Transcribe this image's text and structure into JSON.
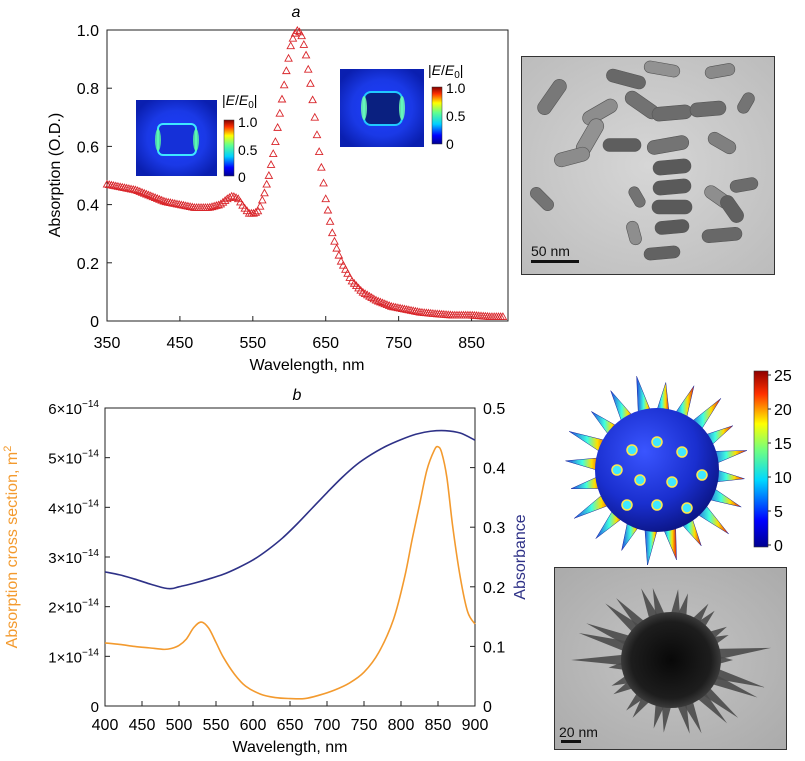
{
  "chart_data": [
    {
      "panel_label": "a",
      "type": "scatter",
      "marker": "open-triangle",
      "color": "#d9262b",
      "xlabel": "Wavelength, nm",
      "ylabel": "Absorption (O.D.)",
      "xlim": [
        350,
        900
      ],
      "ylim": [
        0,
        1.0
      ],
      "xticks": [
        "350",
        "450",
        "550",
        "650",
        "750",
        "850"
      ],
      "yticks": [
        "0",
        "0.2",
        "0.4",
        "0.6",
        "0.8",
        "1.0"
      ],
      "grid": false,
      "points": [
        [
          350,
          0.47
        ],
        [
          370,
          0.46
        ],
        [
          390,
          0.45
        ],
        [
          410,
          0.43
        ],
        [
          430,
          0.41
        ],
        [
          450,
          0.4
        ],
        [
          470,
          0.39
        ],
        [
          490,
          0.39
        ],
        [
          505,
          0.4
        ],
        [
          515,
          0.42
        ],
        [
          522,
          0.43
        ],
        [
          530,
          0.42
        ],
        [
          538,
          0.39
        ],
        [
          545,
          0.37
        ],
        [
          552,
          0.37
        ],
        [
          558,
          0.38
        ],
        [
          565,
          0.43
        ],
        [
          572,
          0.5
        ],
        [
          580,
          0.6
        ],
        [
          588,
          0.73
        ],
        [
          596,
          0.86
        ],
        [
          603,
          0.96
        ],
        [
          610,
          1.0
        ],
        [
          616,
          0.99
        ],
        [
          622,
          0.93
        ],
        [
          630,
          0.8
        ],
        [
          640,
          0.6
        ],
        [
          650,
          0.42
        ],
        [
          660,
          0.29
        ],
        [
          670,
          0.21
        ],
        [
          685,
          0.14
        ],
        [
          700,
          0.1
        ],
        [
          720,
          0.07
        ],
        [
          740,
          0.05
        ],
        [
          760,
          0.04
        ],
        [
          780,
          0.03
        ],
        [
          800,
          0.025
        ],
        [
          825,
          0.02
        ],
        [
          850,
          0.02
        ],
        [
          875,
          0.015
        ],
        [
          895,
          0.015
        ]
      ],
      "inset_colorbars": [
        {
          "label_prefix": "|",
          "label_symbol": "E",
          "label_sep": "/",
          "label_sub_base": "E",
          "label_sub": "0",
          "label_suffix": "|",
          "ticks": [
            "1.0",
            "0.5",
            "0"
          ]
        },
        {
          "label_prefix": "|",
          "label_symbol": "E",
          "label_sep": "/",
          "label_sub_base": "E",
          "label_sub": "0",
          "label_suffix": "|",
          "ticks": [
            "1.0",
            "0.5",
            "0"
          ]
        }
      ],
      "scale_bar": "50 nm"
    },
    {
      "panel_label": "b",
      "type": "line",
      "xlabel": "Wavelength, nm",
      "ylabel_left": "Absorption cross section, m",
      "ylabel_left_sup": "2",
      "ylabel_right": "Absorbance",
      "xlim": [
        400,
        900
      ],
      "ylim_left": [
        0,
        6e-14
      ],
      "ylim_right": [
        0,
        0.5
      ],
      "xticks": [
        "400",
        "450",
        "500",
        "550",
        "600",
        "650",
        "700",
        "750",
        "800",
        "850",
        "900"
      ],
      "yticks_left": [
        {
          "mant": "0",
          "exp": ""
        },
        {
          "mant": "1×10",
          "exp": "−14"
        },
        {
          "mant": "2×10",
          "exp": "−14"
        },
        {
          "mant": "3×10",
          "exp": "−14"
        },
        {
          "mant": "4×10",
          "exp": "−14"
        },
        {
          "mant": "5×10",
          "exp": "−14"
        },
        {
          "mant": "6×10",
          "exp": "−14"
        }
      ],
      "yticks_right": [
        "0",
        "0.1",
        "0.2",
        "0.3",
        "0.4",
        "0.5"
      ],
      "grid": false,
      "series": [
        {
          "axis": "left",
          "color": "#f39a2e",
          "x": [
            400,
            420,
            440,
            460,
            480,
            490,
            500,
            510,
            520,
            530,
            540,
            550,
            560,
            575,
            590,
            610,
            630,
            650,
            670,
            690,
            710,
            730,
            750,
            770,
            790,
            805,
            815,
            825,
            835,
            845,
            850,
            855,
            862,
            870,
            880,
            890,
            900
          ],
          "values": [
            1.27e-14,
            1.24e-14,
            1.2e-14,
            1.17e-14,
            1.14e-14,
            1.16e-14,
            1.22e-14,
            1.35e-14,
            1.58e-14,
            1.69e-14,
            1.57e-14,
            1.28e-14,
            9.8e-15,
            6.4e-15,
            4e-15,
            2.4e-15,
            1.7e-15,
            1.5e-15,
            1.5e-15,
            2.2e-15,
            3.2e-15,
            4.6e-15,
            6.8e-15,
            1.08e-14,
            1.75e-14,
            2.6e-14,
            3.35e-14,
            4.05e-14,
            4.75e-14,
            5.15e-14,
            5.22e-14,
            5.1e-14,
            4.6e-14,
            3.6e-14,
            2.6e-14,
            1.9e-14,
            1.65e-14
          ]
        },
        {
          "axis": "right",
          "color": "#2e3187",
          "x": [
            400,
            420,
            440,
            460,
            480,
            490,
            500,
            520,
            540,
            560,
            580,
            600,
            620,
            640,
            660,
            680,
            700,
            720,
            740,
            760,
            780,
            800,
            820,
            840,
            860,
            880,
            900
          ],
          "values": [
            0.225,
            0.22,
            0.213,
            0.205,
            0.198,
            0.197,
            0.2,
            0.206,
            0.213,
            0.221,
            0.232,
            0.245,
            0.262,
            0.282,
            0.306,
            0.332,
            0.358,
            0.383,
            0.405,
            0.422,
            0.436,
            0.447,
            0.456,
            0.461,
            0.462,
            0.458,
            0.446
          ]
        }
      ],
      "colorbar": {
        "ticks": [
          "25",
          "20",
          "15",
          "10",
          "5",
          "0"
        ]
      },
      "scale_bar": "20 nm"
    }
  ]
}
